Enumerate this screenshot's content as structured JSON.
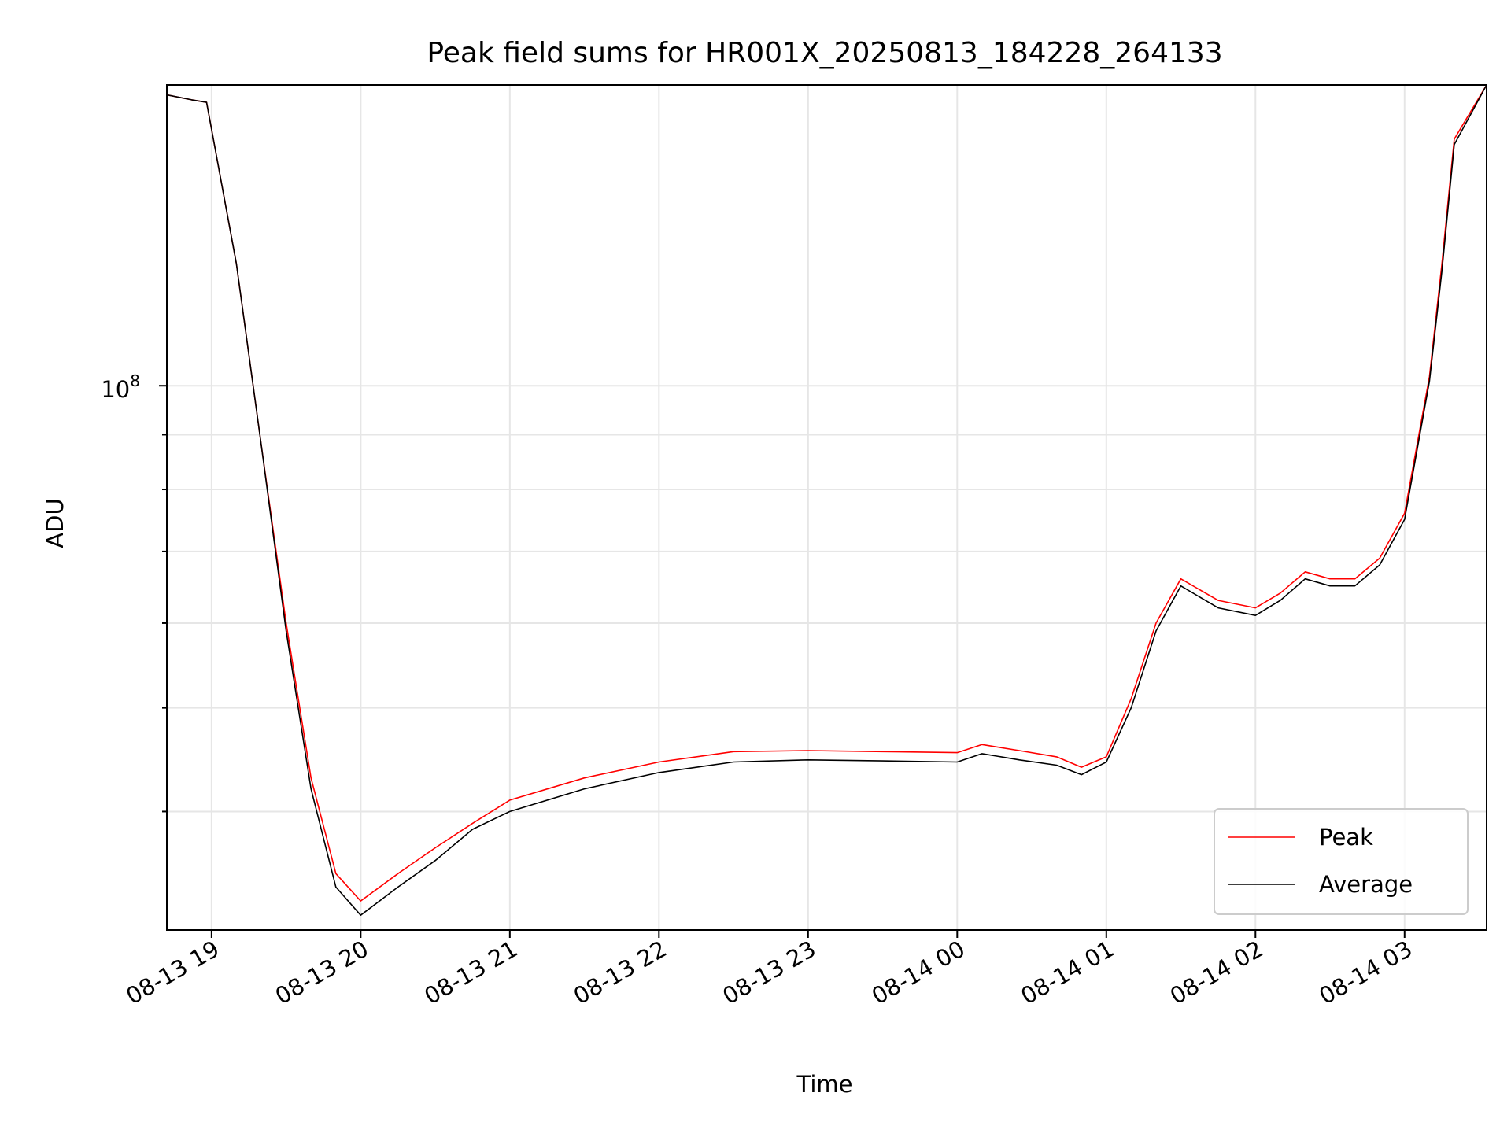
{
  "chart_data": {
    "type": "line",
    "title": "Peak field sums for HR001X_20250813_184228_264133",
    "xlabel": "Time",
    "ylabel": "ADU",
    "y_scale": "log",
    "y_tick_major_label": {
      "base": "10",
      "exp": "8"
    },
    "y_tick_major_value": 100000000,
    "ylim": [
      31000000,
      191000000
    ],
    "xlim": [
      "2025-08-13 18:42",
      "2025-08-14 03:33"
    ],
    "x_ticks": [
      "08-13 19",
      "08-13 20",
      "08-13 21",
      "08-13 22",
      "08-13 23",
      "08-14 00",
      "08-14 01",
      "08-14 02",
      "08-14 03"
    ],
    "x_tick_times": [
      "2025-08-13 19:00",
      "2025-08-13 20:00",
      "2025-08-13 21:00",
      "2025-08-13 22:00",
      "2025-08-13 23:00",
      "2025-08-14 00:00",
      "2025-08-14 01:00",
      "2025-08-14 02:00",
      "2025-08-14 03:00"
    ],
    "grid": true,
    "legend_position": "lower right",
    "x": [
      "2025-08-13 18:42",
      "2025-08-13 18:52",
      "2025-08-13 18:58",
      "2025-08-13 19:10",
      "2025-08-13 19:20",
      "2025-08-13 19:30",
      "2025-08-13 19:40",
      "2025-08-13 19:50",
      "2025-08-13 20:00",
      "2025-08-13 20:15",
      "2025-08-13 20:30",
      "2025-08-13 20:45",
      "2025-08-13 21:00",
      "2025-08-13 21:30",
      "2025-08-13 22:00",
      "2025-08-13 22:30",
      "2025-08-13 23:00",
      "2025-08-13 23:30",
      "2025-08-14 00:00",
      "2025-08-14 00:10",
      "2025-08-14 00:25",
      "2025-08-14 00:40",
      "2025-08-14 00:50",
      "2025-08-14 01:00",
      "2025-08-14 01:10",
      "2025-08-14 01:20",
      "2025-08-14 01:30",
      "2025-08-14 01:45",
      "2025-08-14 02:00",
      "2025-08-14 02:10",
      "2025-08-14 02:20",
      "2025-08-14 02:30",
      "2025-08-14 02:40",
      "2025-08-14 02:50",
      "2025-08-14 03:00",
      "2025-08-14 03:10",
      "2025-08-14 03:15",
      "2025-08-14 03:20",
      "2025-08-14 03:33"
    ],
    "series": [
      {
        "name": "Peak",
        "color": "#ff0000",
        "values": [
          187000000,
          185000000,
          184000000,
          130000000,
          88000000,
          60000000,
          43000000,
          35000000,
          33000000,
          35000000,
          37000000,
          39000000,
          41000000,
          43000000,
          44500000,
          45500000,
          45600000,
          45500000,
          45400000,
          46200000,
          45600000,
          45000000,
          44000000,
          45000000,
          51000000,
          60000000,
          66000000,
          63000000,
          62000000,
          64000000,
          67000000,
          66000000,
          66000000,
          69000000,
          76000000,
          102000000,
          130000000,
          170000000,
          191000000
        ]
      },
      {
        "name": "Average",
        "color": "#000000",
        "values": [
          187000000,
          185000000,
          184000000,
          130000000,
          88000000,
          59000000,
          42000000,
          34000000,
          32000000,
          34000000,
          36000000,
          38500000,
          40000000,
          42000000,
          43500000,
          44500000,
          44700000,
          44600000,
          44500000,
          45300000,
          44700000,
          44200000,
          43300000,
          44500000,
          50000000,
          59000000,
          65000000,
          62000000,
          61000000,
          63000000,
          66000000,
          65000000,
          65000000,
          68000000,
          75000000,
          101000000,
          128000000,
          168000000,
          191000000
        ]
      }
    ]
  }
}
